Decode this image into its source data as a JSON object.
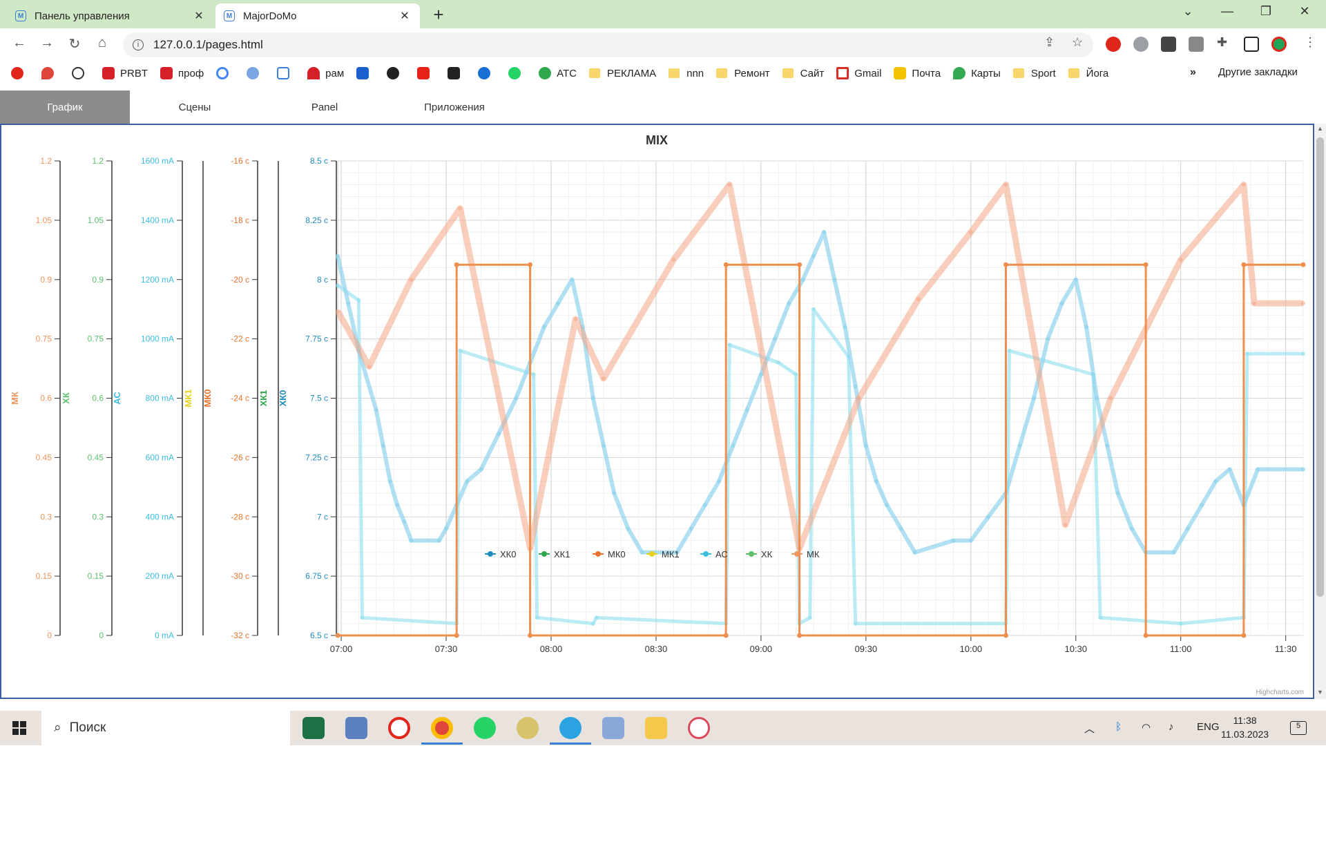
{
  "browser": {
    "tabs": [
      {
        "title": "Панель управления",
        "close": "✕"
      },
      {
        "title": "MajorDoMo",
        "close": "✕"
      }
    ],
    "new_tab": "+",
    "url": "127.0.0.1/pages.html",
    "bookmarks": [
      "PRBT",
      "проф",
      "рам",
      "АТС",
      "РЕКЛАМА",
      "nnn",
      "Ремонт",
      "Сайт",
      "Gmail",
      "Почта",
      "Карты",
      "Sport",
      "Йога"
    ],
    "bookmarks_more": "»",
    "other_bookmarks": "Другие закладки"
  },
  "app": {
    "tabs": [
      "График",
      "Сцены",
      "Panel",
      "Приложения"
    ],
    "active_tab": 0
  },
  "chart_data": {
    "type": "line",
    "title": "MIX",
    "credits": "Highcharts.com",
    "x_ticks": [
      "07:00",
      "07:30",
      "08:00",
      "08:30",
      "09:00",
      "09:30",
      "10:00",
      "10:30",
      "11:00",
      "11:30"
    ],
    "x_range": [
      "07:00",
      "11:35"
    ],
    "axes": [
      {
        "name": "МК",
        "color": "#f0955b",
        "ticks": [
          "1.2",
          "1.05",
          "0.9",
          "0.75",
          "0.6",
          "0.45",
          "0.3",
          "0.15",
          "0"
        ]
      },
      {
        "name": "ХК",
        "color": "#5cc26a",
        "ticks": [
          "1.2",
          "1.05",
          "0.9",
          "0.75",
          "0.6",
          "0.45",
          "0.3",
          "0.15",
          "0"
        ]
      },
      {
        "name": "АС",
        "color": "#3bbde0",
        "ticks": [
          "1600 mA",
          "1400 mA",
          "1200 mA",
          "1000 mA",
          "800 mA",
          "600 mA",
          "400 mA",
          "200 mA",
          "0 mA"
        ]
      },
      {
        "name": "МК1",
        "color": "#e6d21c",
        "ticks": []
      },
      {
        "name": "МК0",
        "color": "#e8722a",
        "ticks": [
          "-16 с",
          "-18 с",
          "-20 с",
          "-22 с",
          "-24 с",
          "-26 с",
          "-28 с",
          "-30 с",
          "-32 с"
        ]
      },
      {
        "name": "ХК1",
        "color": "#2ea84a",
        "ticks": []
      },
      {
        "name": "ХК0",
        "color": "#1f8cc0",
        "ticks": [
          "8.5 с",
          "8.25 с",
          "8 с",
          "7.75 с",
          "7.5 с",
          "7.25 с",
          "7 с",
          "6.75 с",
          "6.5 с"
        ]
      }
    ],
    "legend": [
      {
        "name": "ХК0",
        "color": "#1f8cc0"
      },
      {
        "name": "ХК1",
        "color": "#2ea84a"
      },
      {
        "name": "МК0",
        "color": "#e8722a"
      },
      {
        "name": "МК1",
        "color": "#e6d21c"
      },
      {
        "name": "АС",
        "color": "#3bbde0"
      },
      {
        "name": "ХК",
        "color": "#5cc26a"
      },
      {
        "name": "МК",
        "color": "#f0955b"
      }
    ],
    "series": [
      {
        "name": "МК",
        "axis": "МК",
        "points": [
          [
            "06:59",
            0.82
          ],
          [
            "07:08",
            0.68
          ],
          [
            "07:20",
            0.9
          ],
          [
            "07:34",
            1.08
          ],
          [
            "07:54",
            0.22
          ],
          [
            "08:07",
            0.8
          ],
          [
            "08:15",
            0.65
          ],
          [
            "08:35",
            0.95
          ],
          [
            "08:51",
            1.14
          ],
          [
            "09:11",
            0.22
          ],
          [
            "09:28",
            0.6
          ],
          [
            "09:45",
            0.85
          ],
          [
            "10:00",
            1.02
          ],
          [
            "10:10",
            1.14
          ],
          [
            "10:27",
            0.28
          ],
          [
            "10:40",
            0.6
          ],
          [
            "11:00",
            0.95
          ],
          [
            "11:18",
            1.14
          ],
          [
            "11:21",
            0.84
          ],
          [
            "11:35",
            0.84
          ]
        ]
      },
      {
        "name": "МК0",
        "axis": "МК0",
        "points": [
          [
            "06:59",
            -32
          ],
          [
            "07:33",
            -32
          ],
          [
            "07:33",
            -19.5
          ],
          [
            "07:54",
            -19.5
          ],
          [
            "07:54",
            -32
          ],
          [
            "08:50",
            -32
          ],
          [
            "08:50",
            -19.5
          ],
          [
            "09:11",
            -19.5
          ],
          [
            "09:11",
            -32
          ],
          [
            "10:10",
            -32
          ],
          [
            "10:10",
            -19.5
          ],
          [
            "10:50",
            -19.5
          ],
          [
            "10:50",
            -32
          ],
          [
            "11:18",
            -32
          ],
          [
            "11:18",
            -19.5
          ],
          [
            "11:35",
            -19.5
          ]
        ]
      },
      {
        "name": "ХК0",
        "axis": "ХК0",
        "points": [
          [
            "06:59",
            8.1
          ],
          [
            "07:02",
            7.9
          ],
          [
            "07:05",
            7.7
          ],
          [
            "07:10",
            7.45
          ],
          [
            "07:12",
            7.3
          ],
          [
            "07:14",
            7.15
          ],
          [
            "07:16",
            7.05
          ],
          [
            "07:18",
            6.98
          ],
          [
            "07:20",
            6.9
          ],
          [
            "07:28",
            6.9
          ],
          [
            "07:30",
            6.95
          ],
          [
            "07:33",
            7.05
          ],
          [
            "07:36",
            7.15
          ],
          [
            "07:40",
            7.2
          ],
          [
            "07:45",
            7.35
          ],
          [
            "07:50",
            7.5
          ],
          [
            "07:54",
            7.65
          ],
          [
            "07:58",
            7.8
          ],
          [
            "08:02",
            7.9
          ],
          [
            "08:06",
            8.0
          ],
          [
            "08:09",
            7.8
          ],
          [
            "08:12",
            7.5
          ],
          [
            "08:15",
            7.3
          ],
          [
            "08:18",
            7.1
          ],
          [
            "08:22",
            6.95
          ],
          [
            "08:26",
            6.85
          ],
          [
            "08:36",
            6.85
          ],
          [
            "08:40",
            6.95
          ],
          [
            "08:44",
            7.05
          ],
          [
            "08:48",
            7.15
          ],
          [
            "08:52",
            7.3
          ],
          [
            "08:56",
            7.45
          ],
          [
            "09:00",
            7.6
          ],
          [
            "09:04",
            7.75
          ],
          [
            "09:08",
            7.9
          ],
          [
            "09:12",
            8.0
          ],
          [
            "09:15",
            8.1
          ],
          [
            "09:18",
            8.2
          ],
          [
            "09:21",
            8.0
          ],
          [
            "09:24",
            7.8
          ],
          [
            "09:27",
            7.55
          ],
          [
            "09:30",
            7.3
          ],
          [
            "09:33",
            7.15
          ],
          [
            "09:36",
            7.05
          ],
          [
            "09:40",
            6.95
          ],
          [
            "09:44",
            6.85
          ],
          [
            "09:55",
            6.9
          ],
          [
            "10:00",
            6.9
          ],
          [
            "10:05",
            7.0
          ],
          [
            "10:10",
            7.1
          ],
          [
            "10:14",
            7.3
          ],
          [
            "10:18",
            7.5
          ],
          [
            "10:22",
            7.75
          ],
          [
            "10:26",
            7.9
          ],
          [
            "10:30",
            8.0
          ],
          [
            "10:33",
            7.8
          ],
          [
            "10:36",
            7.5
          ],
          [
            "10:39",
            7.3
          ],
          [
            "10:42",
            7.1
          ],
          [
            "10:46",
            6.95
          ],
          [
            "10:50",
            6.85
          ],
          [
            "10:58",
            6.85
          ],
          [
            "11:02",
            6.95
          ],
          [
            "11:06",
            7.05
          ],
          [
            "11:10",
            7.15
          ],
          [
            "11:14",
            7.2
          ],
          [
            "11:18",
            7.05
          ],
          [
            "11:22",
            7.2
          ],
          [
            "11:35",
            7.2
          ]
        ]
      },
      {
        "name": "АС",
        "axis": "АС",
        "points": [
          [
            "06:59",
            1180
          ],
          [
            "07:05",
            1130
          ],
          [
            "07:06",
            60
          ],
          [
            "07:33",
            40
          ],
          [
            "07:34",
            960
          ],
          [
            "07:55",
            880
          ],
          [
            "07:56",
            60
          ],
          [
            "08:12",
            40
          ],
          [
            "08:13",
            60
          ],
          [
            "08:50",
            40
          ],
          [
            "08:51",
            980
          ],
          [
            "09:05",
            920
          ],
          [
            "09:10",
            880
          ],
          [
            "09:11",
            40
          ],
          [
            "09:14",
            60
          ],
          [
            "09:15",
            1100
          ],
          [
            "09:25",
            940
          ],
          [
            "09:27",
            40
          ],
          [
            "10:10",
            40
          ],
          [
            "10:11",
            960
          ],
          [
            "10:35",
            880
          ],
          [
            "10:37",
            60
          ],
          [
            "11:00",
            40
          ],
          [
            "11:18",
            60
          ],
          [
            "11:19",
            950
          ],
          [
            "11:35",
            950
          ]
        ]
      }
    ]
  },
  "taskbar": {
    "search": "Поиск",
    "lang": "ENG",
    "time": "11:38",
    "date": "11.03.2023",
    "notifications": "5"
  }
}
